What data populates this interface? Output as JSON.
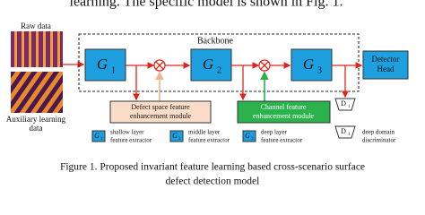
{
  "header": {
    "text": "learning. The specific model is shown in Fig. 1."
  },
  "inputs": [
    {
      "label": "Raw data"
    },
    {
      "label": [
        "Auxiliary learning",
        "data"
      ]
    }
  ],
  "backbone": {
    "label": "Backbone"
  },
  "nodes": [
    {
      "label": "G",
      "subscript": "1"
    },
    {
      "label": "G",
      "subscript": "2"
    },
    {
      "label": "G",
      "subscript": "3"
    },
    {
      "label": [
        "Detector",
        "Head"
      ]
    }
  ],
  "modules": [
    {
      "label": [
        "Defect space feature",
        "enhancement module"
      ]
    },
    {
      "label": [
        "Channel feature",
        "enhancement module"
      ]
    }
  ],
  "discriminators": [
    {
      "label": "D",
      "subscript": "1"
    },
    {
      "label": "D",
      "subscript": "1"
    }
  ],
  "legend": [
    {
      "icon": "G",
      "subscript": "1",
      "text": [
        "shallow layer",
        "feature extractor"
      ]
    },
    {
      "icon": "G",
      "subscript": "2",
      "text": [
        "middle layer",
        "feature extractor"
      ]
    },
    {
      "icon": "G",
      "subscript": "3",
      "text": [
        "deep layer",
        "feature extractor"
      ]
    },
    {
      "icon": "D",
      "subscript": "1",
      "text": [
        "deep domain",
        "discriminator"
      ]
    }
  ],
  "caption": [
    "Figure 1. Proposed invariant feature learning based cross-scenario surface",
    "defect detection model"
  ]
}
